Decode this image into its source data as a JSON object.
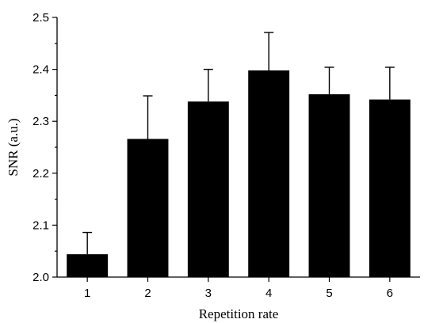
{
  "chart_data": {
    "type": "bar",
    "categories": [
      "1",
      "2",
      "3",
      "4",
      "5",
      "6"
    ],
    "values": [
      2.044,
      2.266,
      2.338,
      2.398,
      2.352,
      2.342
    ],
    "error_upper": [
      0.042,
      0.083,
      0.062,
      0.073,
      0.052,
      0.062
    ],
    "xlabel": "Repetition rate",
    "ylabel": "SNR (a.u.)",
    "ylim": [
      2.0,
      2.5
    ],
    "yticks": [
      "2.0",
      "2.1",
      "2.2",
      "2.3",
      "2.4",
      "2.5"
    ],
    "grid": false,
    "bar_color": "#000000"
  }
}
